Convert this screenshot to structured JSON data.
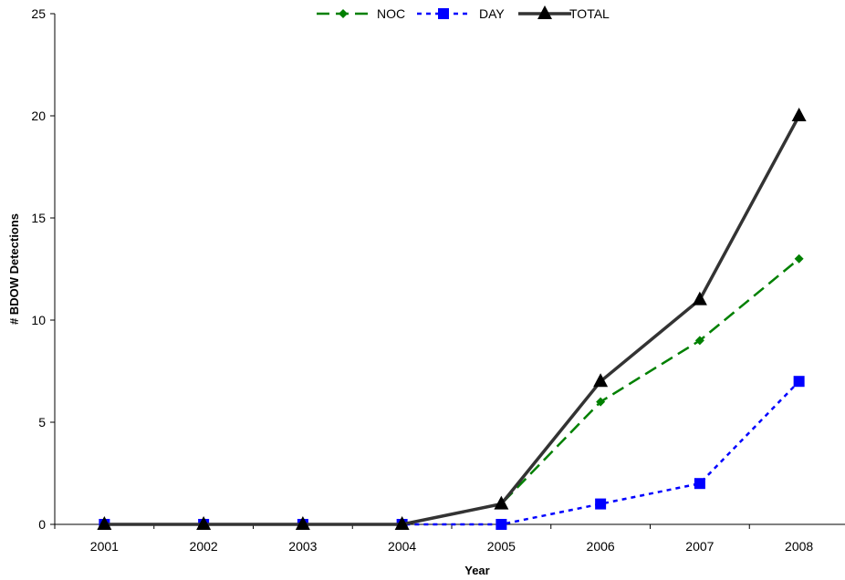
{
  "chart_data": {
    "type": "line",
    "title": "",
    "xlabel": "Year",
    "ylabel": "# BDOW Detections",
    "categories": [
      "2001",
      "2002",
      "2003",
      "2004",
      "2005",
      "2006",
      "2007",
      "2008"
    ],
    "ylim": [
      0,
      25
    ],
    "yticks": [
      0,
      5,
      10,
      15,
      20,
      25
    ],
    "grid": false,
    "legend_position": "top-center",
    "series": [
      {
        "name": "NOC",
        "values": [
          0,
          0,
          0,
          0,
          1,
          6,
          9,
          13
        ],
        "color": "#008000",
        "marker": "diamond",
        "line_style": "long-dash"
      },
      {
        "name": "DAY",
        "values": [
          0,
          0,
          0,
          0,
          0,
          1,
          2,
          7
        ],
        "color": "#0000FF",
        "marker": "square",
        "line_style": "dotted"
      },
      {
        "name": "TOTAL",
        "values": [
          0,
          0,
          0,
          0,
          1,
          7,
          11,
          20
        ],
        "color": "#333333",
        "marker": "triangle",
        "line_style": "solid"
      }
    ]
  }
}
